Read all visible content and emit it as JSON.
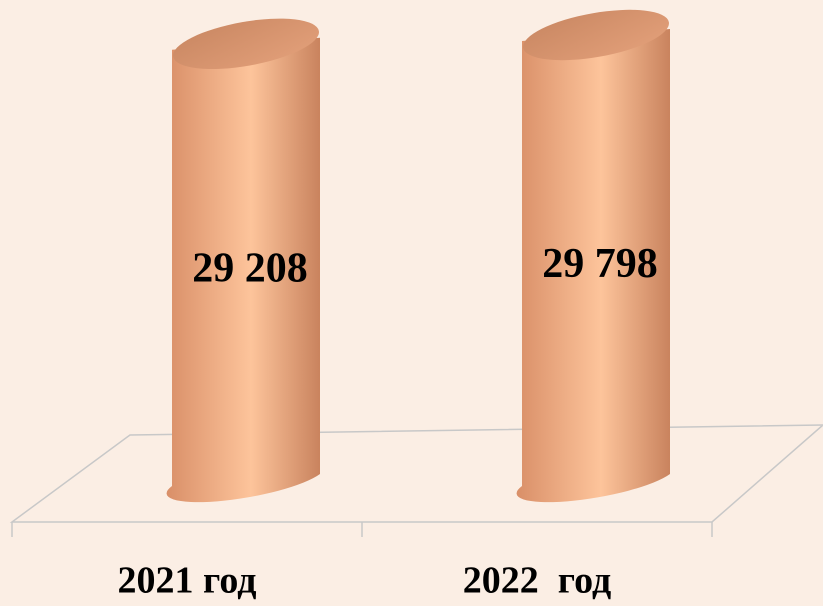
{
  "chart_data": {
    "type": "bar3d_cylinder",
    "categories": [
      "2021 год",
      "2022  год"
    ],
    "values": [
      29208,
      29798
    ],
    "value_labels": [
      "29 208",
      "29 798"
    ],
    "color": "#f4b084"
  }
}
